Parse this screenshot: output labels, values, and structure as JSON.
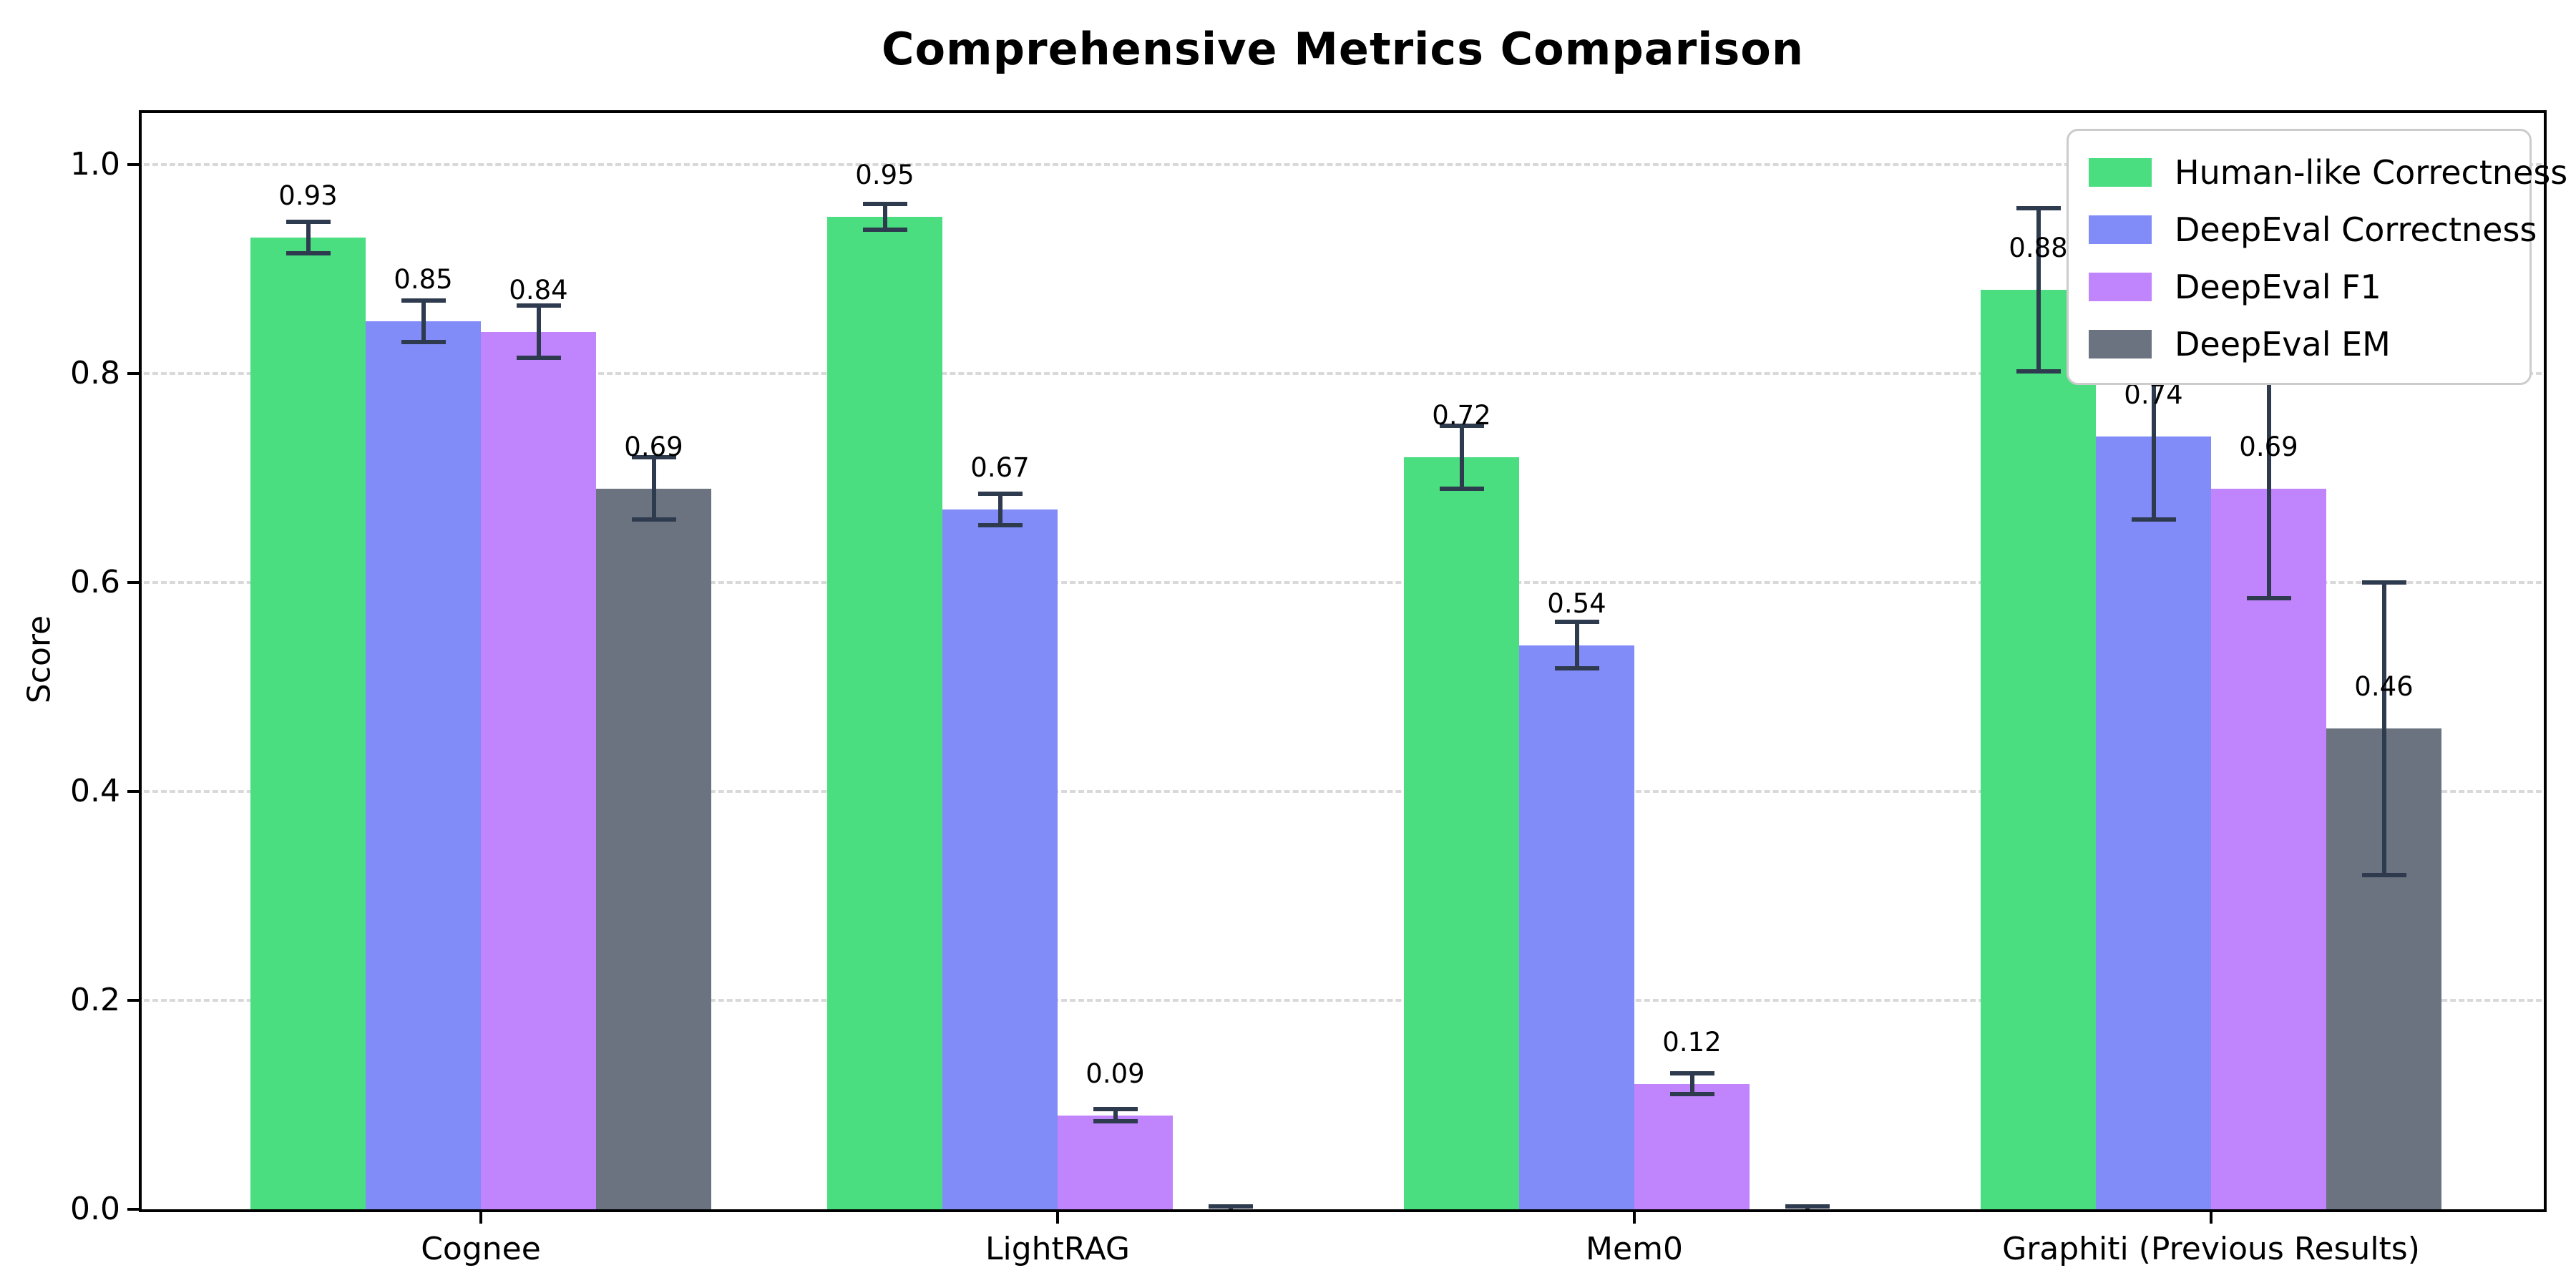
{
  "chart_data": {
    "type": "bar",
    "title": "Comprehensive Metrics Comparison",
    "ylabel": "Score",
    "xlabel": "",
    "categories": [
      "Cognee",
      "LightRAG",
      "Mem0",
      "Graphiti (Previous Results)"
    ],
    "series": [
      {
        "name": "Human-like Correctness",
        "color": "#4ade80",
        "values": [
          0.93,
          0.95,
          0.72,
          0.88
        ],
        "errors": [
          0.015,
          0.012,
          0.03,
          0.078
        ],
        "labels": [
          "0.93",
          "0.95",
          "0.72",
          "0.88"
        ]
      },
      {
        "name": "DeepEval Correctness",
        "color": "#818cf8",
        "values": [
          0.85,
          0.67,
          0.54,
          0.74
        ],
        "errors": [
          0.02,
          0.015,
          0.022,
          0.08
        ],
        "labels": [
          "0.85",
          "0.67",
          "0.54",
          "0.74"
        ]
      },
      {
        "name": "DeepEval F1",
        "color": "#c084fc",
        "values": [
          0.84,
          0.09,
          0.12,
          0.69
        ],
        "errors": [
          0.025,
          0.006,
          0.01,
          0.105
        ],
        "labels": [
          "0.84",
          "0.09",
          "0.12",
          "0.69"
        ]
      },
      {
        "name": "DeepEval EM",
        "color": "#6b7280",
        "values": [
          0.69,
          0.0,
          0.0,
          0.46
        ],
        "errors": [
          0.03,
          0.003,
          0.003,
          0.14
        ],
        "labels": [
          "0.69",
          "",
          "",
          "0.46"
        ]
      }
    ],
    "yticks": [
      "0.0",
      "0.2",
      "0.4",
      "0.6",
      "0.8",
      "1.0"
    ],
    "ytick_values": [
      0.0,
      0.2,
      0.4,
      0.6,
      0.8,
      1.0
    ],
    "ylim": [
      0,
      1.05
    ],
    "grid": "horizontal-dashed",
    "legend_position": "upper-right",
    "error_bar_color": "#2e3b4e",
    "grid_color": "#d9d9d9",
    "spine_color": "#000000",
    "background_color": "#ffffff"
  }
}
